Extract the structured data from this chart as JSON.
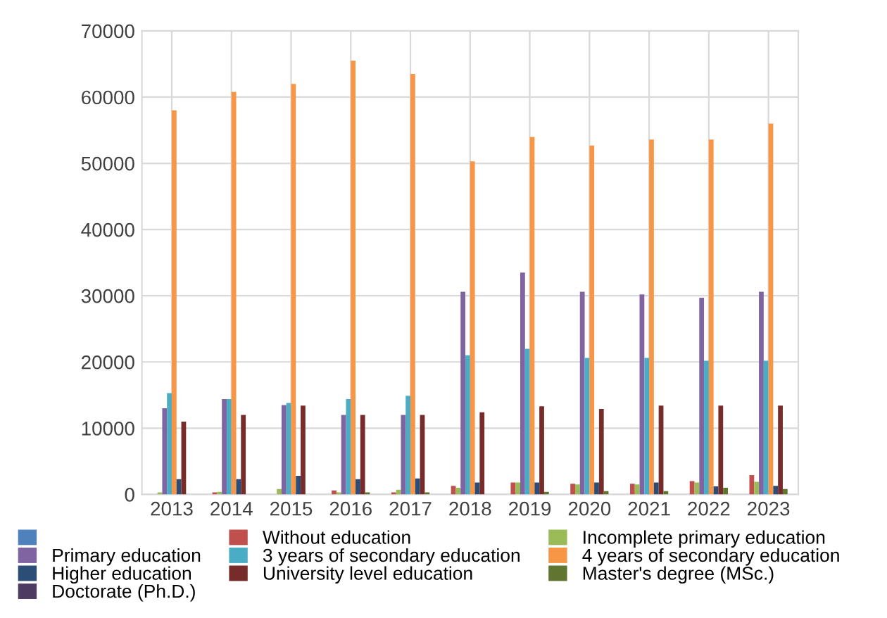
{
  "chart_data": {
    "type": "bar",
    "categories": [
      "2013",
      "2014",
      "2015",
      "2016",
      "2017",
      "2018",
      "2019",
      "2020",
      "2021",
      "2022",
      "2023"
    ],
    "series": [
      {
        "color": "#4f81bd",
        "values": [
          0,
          0,
          0,
          0,
          0,
          0,
          0,
          0,
          0,
          0,
          0
        ]
      },
      {
        "name": "Without education",
        "color": "#c0504d",
        "values": [
          0,
          300,
          0,
          600,
          300,
          1300,
          1800,
          1600,
          1600,
          2000,
          2900
        ]
      },
      {
        "name": "Incomplete primary education",
        "color": "#9bbb59",
        "values": [
          300,
          400,
          800,
          300,
          700,
          1000,
          1800,
          1500,
          1500,
          1800,
          1900
        ]
      },
      {
        "name": "Primary education",
        "color": "#8064a2",
        "values": [
          13000,
          14400,
          13500,
          12000,
          12000,
          30600,
          33500,
          30600,
          30200,
          29700,
          30600
        ]
      },
      {
        "name": "3 years of secondary education",
        "color": "#4bacc6",
        "values": [
          15300,
          14400,
          13800,
          14400,
          14900,
          21000,
          22000,
          20600,
          20600,
          20200,
          20200
        ]
      },
      {
        "name": "4 years of secondary education",
        "color": "#f79646",
        "values": [
          58000,
          60800,
          62000,
          65500,
          63500,
          50300,
          54000,
          52700,
          53600,
          53600,
          56000
        ]
      },
      {
        "name": "Higher education",
        "color": "#2c4d75",
        "values": [
          2300,
          2300,
          2800,
          2300,
          2400,
          1800,
          1800,
          1800,
          1800,
          1200,
          1300
        ]
      },
      {
        "name": "University level education",
        "color": "#772c2a",
        "values": [
          11000,
          12000,
          13400,
          12000,
          12000,
          12400,
          13300,
          12900,
          13400,
          13400,
          13400
        ]
      },
      {
        "name": "Master's degree (MSc.)",
        "color": "#5f7530",
        "values": [
          0,
          0,
          0,
          300,
          300,
          0,
          400,
          500,
          500,
          1000,
          800
        ]
      },
      {
        "name": "Doctorate (Ph.D.)",
        "color": "#4d3b62",
        "values": [
          0,
          0,
          0,
          0,
          0,
          0,
          0,
          0,
          0,
          0,
          0
        ]
      }
    ],
    "ylim": [
      0,
      70000
    ],
    "yticks": [
      0,
      10000,
      20000,
      30000,
      40000,
      50000,
      60000,
      70000
    ],
    "grid": true,
    "legend": "bottom"
  }
}
